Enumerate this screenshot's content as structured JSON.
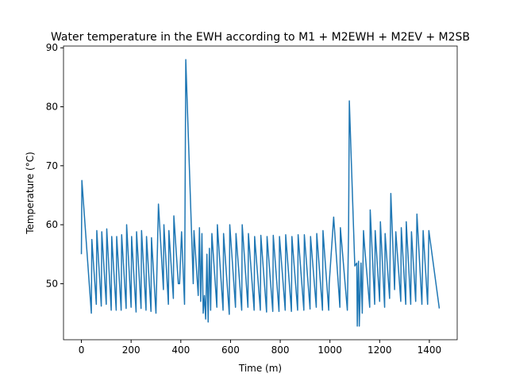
{
  "chart_data": {
    "type": "line",
    "title": "Water temperature in the EWH according to M1 + M2EWH + M2EV + M2SB",
    "xlabel": "Time (m)",
    "ylabel": "Temperature (°C)",
    "color": "#1f77b4",
    "x": [
      0,
      2,
      40,
      42,
      60,
      62,
      80,
      82,
      100,
      102,
      120,
      122,
      140,
      142,
      160,
      162,
      180,
      182,
      200,
      202,
      220,
      222,
      240,
      242,
      260,
      262,
      280,
      282,
      300,
      310,
      330,
      332,
      350,
      352,
      370,
      372,
      390,
      395,
      403,
      415,
      420,
      450,
      453,
      470,
      475,
      480,
      485,
      490,
      495,
      500,
      505,
      510,
      515,
      520,
      525,
      545,
      547,
      570,
      572,
      595,
      597,
      620,
      622,
      645,
      647,
      670,
      672,
      695,
      697,
      720,
      722,
      745,
      747,
      770,
      772,
      795,
      797,
      820,
      822,
      845,
      847,
      870,
      872,
      895,
      897,
      920,
      922,
      945,
      947,
      970,
      972,
      995,
      997,
      1015,
      1040,
      1042,
      1070,
      1075,
      1078,
      1100,
      1108,
      1110,
      1115,
      1118,
      1125,
      1130,
      1135,
      1140,
      1160,
      1162,
      1180,
      1182,
      1200,
      1203,
      1220,
      1222,
      1240,
      1245,
      1260,
      1265,
      1285,
      1287,
      1305,
      1307,
      1325,
      1328,
      1345,
      1350,
      1370,
      1375,
      1393,
      1398,
      1440
    ],
    "values": [
      55,
      67.5,
      45,
      57.5,
      46.5,
      59,
      46.2,
      58.8,
      46.5,
      59.3,
      45.5,
      58,
      45.5,
      58,
      45.5,
      58.3,
      45.8,
      60,
      46,
      58,
      45.2,
      58.8,
      45.8,
      59,
      45.5,
      58,
      45.3,
      57.8,
      45,
      63.5,
      49,
      60,
      46.5,
      59,
      47.5,
      61.5,
      50,
      50,
      58.8,
      46.5,
      88,
      50,
      59,
      48,
      59.5,
      47,
      58.5,
      45,
      48,
      44,
      55,
      43.5,
      56,
      45.5,
      58.5,
      46,
      60,
      45.5,
      58.5,
      44.8,
      60,
      46,
      58.5,
      45.5,
      60,
      46,
      58.5,
      45.5,
      58,
      45.5,
      58.2,
      45.2,
      58,
      45.3,
      58.2,
      45.3,
      58,
      45.5,
      58.3,
      45.3,
      58,
      45.5,
      58.3,
      45.5,
      58.3,
      45.7,
      58,
      46,
      58.5,
      45.5,
      59,
      45.5,
      50,
      61.3,
      46,
      59.5,
      45.5,
      59,
      81,
      53,
      53.5,
      42.8,
      53.8,
      42.8,
      53.5,
      45,
      59,
      56,
      46,
      62.5,
      46.5,
      59,
      47,
      60.5,
      46,
      58.5,
      47.5,
      65.3,
      49,
      58.8,
      47,
      59.5,
      46.5,
      60.5,
      46.5,
      58.8,
      47,
      61.8,
      46.5,
      59,
      46.5,
      59,
      45.8
    ],
    "xlim": [
      -72,
      1512
    ],
    "ylim": [
      40.5,
      90.3
    ],
    "xticks": [
      0,
      200,
      400,
      600,
      800,
      1000,
      1200,
      1400
    ],
    "yticks": [
      50,
      60,
      70,
      80,
      90
    ]
  }
}
